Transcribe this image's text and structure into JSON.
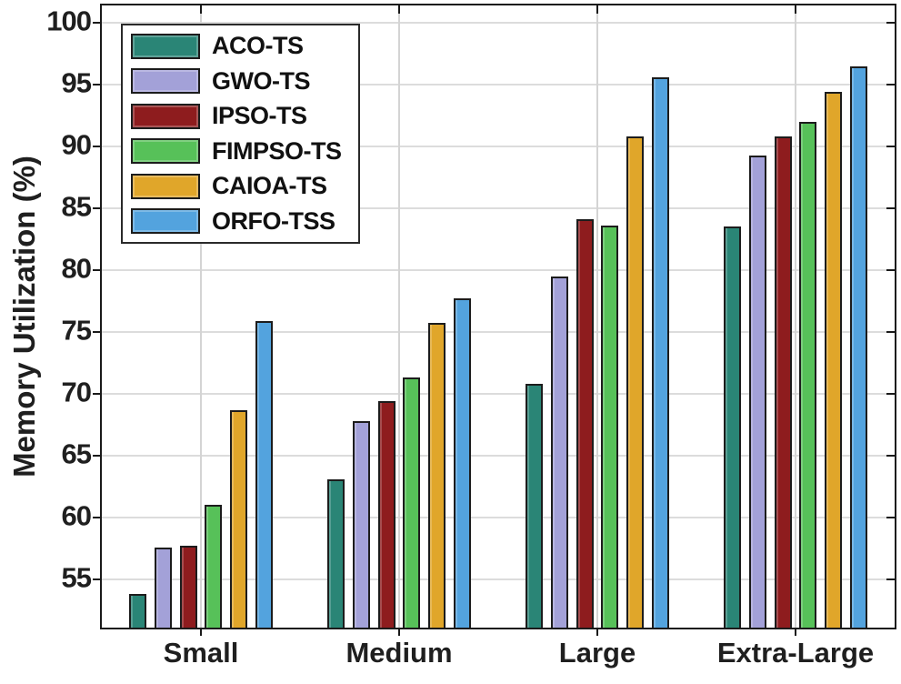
{
  "chart_data": {
    "type": "bar",
    "title": "",
    "ylabel": "Memory Utilization (%)",
    "xlabel": "",
    "categories": [
      "Small",
      "Medium",
      "Large",
      "Extra-Large"
    ],
    "series": [
      {
        "name": "ACO-TS",
        "color": "#2a8576",
        "values": [
          53.8,
          63.1,
          70.8,
          83.5
        ]
      },
      {
        "name": "GWO-TS",
        "color": "#a3a1d8",
        "values": [
          57.6,
          67.8,
          79.5,
          89.3
        ]
      },
      {
        "name": "IPSO-TS",
        "color": "#8e1c1e",
        "values": [
          57.7,
          69.4,
          84.1,
          90.8
        ]
      },
      {
        "name": "FIMPSO-TS",
        "color": "#57c159",
        "values": [
          61.0,
          71.3,
          83.6,
          92.0
        ]
      },
      {
        "name": "CAIOA-TS",
        "color": "#e0a62a",
        "values": [
          68.7,
          75.7,
          90.8,
          94.4
        ]
      },
      {
        "name": "ORFO-TSS",
        "color": "#53a3de",
        "values": [
          75.9,
          77.7,
          95.6,
          96.5
        ]
      }
    ],
    "yticks": [
      55,
      60,
      65,
      70,
      75,
      80,
      85,
      90,
      95,
      100
    ],
    "ylim": [
      51.1,
      101.4
    ],
    "grid": true,
    "grid_color": "#dcdcdc",
    "axis_color": "#1a1a1a",
    "legend_position": "top-left"
  }
}
